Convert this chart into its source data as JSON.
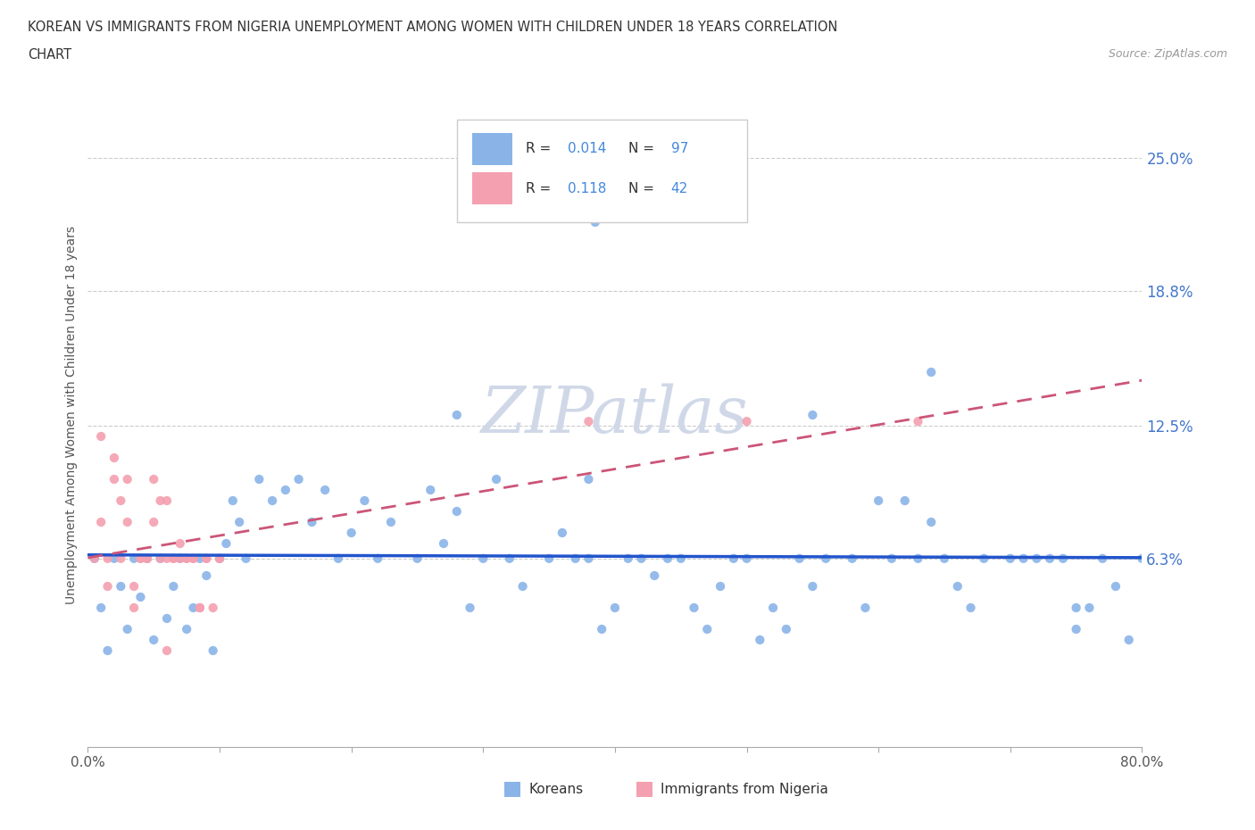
{
  "title_line1": "KOREAN VS IMMIGRANTS FROM NIGERIA UNEMPLOYMENT AMONG WOMEN WITH CHILDREN UNDER 18 YEARS CORRELATION",
  "title_line2": "CHART",
  "source": "Source: ZipAtlas.com",
  "ylabel": "Unemployment Among Women with Children Under 18 years",
  "xlim": [
    0.0,
    0.8
  ],
  "ylim": [
    -0.025,
    0.285
  ],
  "ytick_values": [
    0.063,
    0.125,
    0.188,
    0.25
  ],
  "ytick_labels": [
    "6.3%",
    "12.5%",
    "18.8%",
    "25.0%"
  ],
  "hgrid_color": "#cccccc",
  "background_color": "#ffffff",
  "korean_color": "#8ab4e8",
  "nigeria_color": "#f4a0b0",
  "korean_R": 0.014,
  "korean_N": 97,
  "nigeria_R": 0.118,
  "nigeria_N": 42,
  "legend_label_korean": "Koreans",
  "legend_label_nigeria": "Immigrants from Nigeria",
  "trend_korean_color": "#2255cc",
  "trend_nigeria_color": "#cc5577",
  "watermark": "ZIPatlas",
  "watermark_color": "#d0d8e8"
}
